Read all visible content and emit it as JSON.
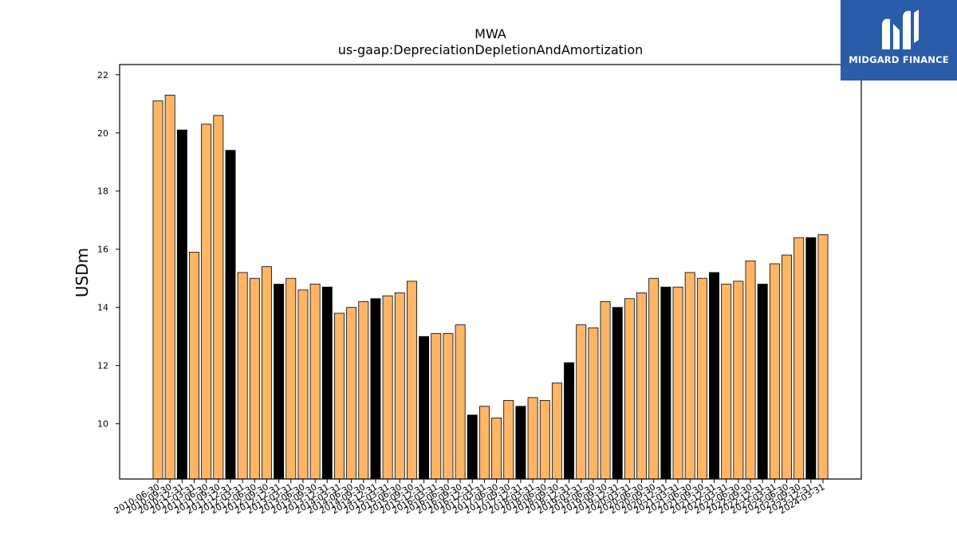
{
  "chart_data": {
    "type": "bar",
    "title": "MWA",
    "subtitle": "us-gaap:DepreciationDepletionAndAmortization",
    "xlabel": "",
    "ylabel": "USDm",
    "ylim": [
      8.1,
      22.35
    ],
    "yticks": [
      10,
      12,
      14,
      16,
      18,
      20,
      22
    ],
    "grid": false,
    "colors": {
      "quarter": "#ffb566",
      "annual": "#000000",
      "edge": "#000000"
    },
    "categories": [
      "2010-06-30",
      "2010-09-30",
      "2010-12-31",
      "2011-03-31",
      "2011-06-30",
      "2011-09-30",
      "2011-12-31",
      "2012-03-31",
      "2012-06-30",
      "2012-09-30",
      "2012-12-31",
      "2013-03-31",
      "2013-06-30",
      "2013-09-30",
      "2013-12-31",
      "2014-03-31",
      "2014-06-30",
      "2014-09-30",
      "2014-12-31",
      "2015-03-31",
      "2015-06-30",
      "2015-09-30",
      "2015-12-31",
      "2016-03-31",
      "2016-06-30",
      "2016-09-30",
      "2016-12-31",
      "2017-03-31",
      "2017-06-30",
      "2017-09-30",
      "2017-12-31",
      "2018-03-31",
      "2018-06-30",
      "2018-09-30",
      "2018-12-31",
      "2019-03-31",
      "2019-06-30",
      "2019-09-30",
      "2019-12-31",
      "2020-03-31",
      "2020-06-30",
      "2020-09-30",
      "2020-12-31",
      "2021-03-31",
      "2021-06-30",
      "2021-09-30",
      "2021-12-31",
      "2022-03-31",
      "2022-06-30",
      "2022-09-30",
      "2022-12-31",
      "2023-03-31",
      "2023-06-30",
      "2023-09-30",
      "2023-12-31",
      "2024-03-31"
    ],
    "values": [
      21.1,
      21.3,
      20.1,
      15.9,
      20.3,
      20.6,
      19.4,
      15.2,
      15.0,
      15.4,
      14.8,
      15.0,
      14.6,
      14.8,
      14.7,
      13.8,
      14.0,
      14.2,
      14.3,
      14.4,
      14.5,
      14.9,
      13.0,
      13.1,
      13.1,
      13.4,
      10.3,
      10.6,
      10.2,
      10.8,
      10.6,
      10.9,
      10.8,
      11.4,
      12.1,
      13.4,
      13.3,
      14.2,
      14.0,
      14.3,
      14.5,
      15.0,
      14.7,
      14.7,
      15.2,
      15.0,
      15.2,
      14.8,
      14.9,
      15.6,
      14.8,
      15.5,
      15.8,
      16.4,
      16.4,
      16.5
    ],
    "annual": [
      false,
      false,
      true,
      false,
      false,
      false,
      true,
      false,
      false,
      false,
      true,
      false,
      false,
      false,
      true,
      false,
      false,
      false,
      true,
      false,
      false,
      false,
      true,
      false,
      false,
      false,
      true,
      false,
      false,
      false,
      true,
      false,
      false,
      false,
      true,
      false,
      false,
      false,
      true,
      false,
      false,
      false,
      true,
      false,
      false,
      false,
      true,
      false,
      false,
      false,
      true,
      false,
      false,
      false,
      true,
      false
    ]
  },
  "logo": {
    "name": "MIDGARD FINANCE",
    "icon": "midgard-logo-icon"
  }
}
